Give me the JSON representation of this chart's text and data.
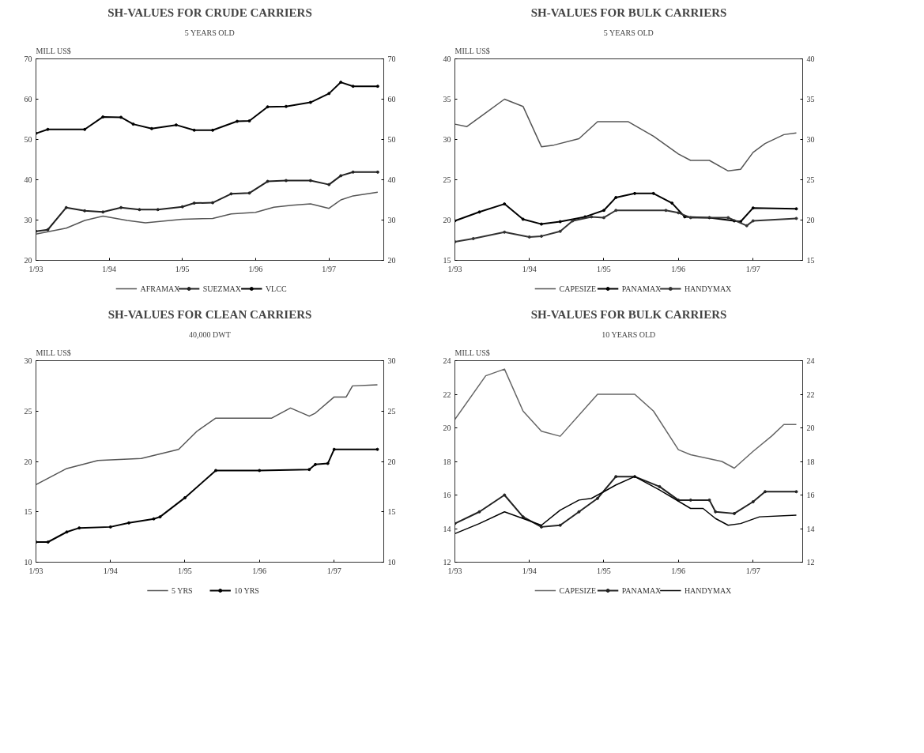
{
  "chart_data": [
    {
      "type": "line",
      "title": "SH-VALUES FOR CRUDE CARRIERS",
      "subtitle": "5 YEARS OLD",
      "ylabel": "MILL US$",
      "legend": "bottom",
      "xlim": [
        "1993-01",
        "1997-10"
      ],
      "xticks": [
        {
          "value": "1993-01",
          "label": "1/93"
        },
        {
          "value": "1994-01",
          "label": "1/94"
        },
        {
          "value": "1995-01",
          "label": "1/95"
        },
        {
          "value": "1996-01",
          "label": "1/96"
        },
        {
          "value": "1997-01",
          "label": "1/97"
        }
      ],
      "ylim": [
        20,
        70
      ],
      "yticks": [
        20,
        30,
        40,
        50,
        60,
        70
      ],
      "y2lim": [
        20,
        70
      ],
      "y2ticks": [
        20,
        30,
        40,
        50,
        60,
        70
      ],
      "series": [
        {
          "name": "AFRAMAX",
          "color": "#555555",
          "marker": "none",
          "x": [
            "1993-01",
            "1993-06",
            "1993-09",
            "1993-12",
            "1994-04",
            "1994-07",
            "1995-01",
            "1995-06",
            "1995-09",
            "1996-01",
            "1996-04",
            "1996-07",
            "1996-10",
            "1997-01",
            "1997-03",
            "1997-05",
            "1997-09"
          ],
          "values": [
            26.5,
            28.0,
            29.9,
            31.0,
            29.9,
            29.3,
            30.2,
            30.4,
            31.5,
            31.9,
            33.2,
            33.7,
            34.0,
            32.9,
            35.0,
            36.0,
            36.9
          ]
        },
        {
          "name": "SUEZMAX",
          "color": "#222222",
          "marker": "circle",
          "x": [
            "1993-01",
            "1993-03",
            "1993-06",
            "1993-09",
            "1993-12",
            "1994-03",
            "1994-06",
            "1994-09",
            "1995-01",
            "1995-03",
            "1995-06",
            "1995-09",
            "1995-12",
            "1996-03",
            "1996-06",
            "1996-10",
            "1997-01",
            "1997-03",
            "1997-05",
            "1997-09"
          ],
          "values": [
            27.2,
            27.6,
            33.1,
            32.3,
            32.0,
            33.1,
            32.6,
            32.6,
            33.3,
            34.2,
            34.3,
            36.5,
            36.7,
            39.6,
            39.8,
            39.8,
            38.8,
            41.0,
            41.9,
            41.9
          ]
        },
        {
          "name": "VLCC",
          "color": "#000000",
          "marker": "circle",
          "x": [
            "1993-01",
            "1993-03",
            "1993-09",
            "1993-12",
            "1994-03",
            "1994-05",
            "1994-08",
            "1994-12",
            "1995-03",
            "1995-06",
            "1995-10",
            "1995-12",
            "1996-03",
            "1996-06",
            "1996-10",
            "1997-01",
            "1997-03",
            "1997-05",
            "1997-09"
          ],
          "values": [
            51.5,
            52.5,
            52.5,
            55.6,
            55.5,
            53.8,
            52.7,
            53.6,
            52.3,
            52.3,
            54.5,
            54.6,
            58.1,
            58.2,
            59.2,
            61.4,
            64.2,
            63.2,
            63.2
          ]
        }
      ]
    },
    {
      "type": "line",
      "title": "SH-VALUES FOR BULK CARRIERS",
      "subtitle": "5 YEARS OLD",
      "ylabel": "MILL US$",
      "legend": "bottom",
      "xlim": [
        "1993-01",
        "1997-09"
      ],
      "xticks": [
        {
          "value": "1993-01",
          "label": "1/93"
        },
        {
          "value": "1994-01",
          "label": "1/94"
        },
        {
          "value": "1995-01",
          "label": "1/95"
        },
        {
          "value": "1996-01",
          "label": "1/96"
        },
        {
          "value": "1997-01",
          "label": "1/97"
        }
      ],
      "ylim": [
        15,
        40
      ],
      "yticks": [
        15,
        20,
        25,
        30,
        35,
        40
      ],
      "y2lim": [
        15,
        40
      ],
      "y2ticks": [
        15,
        20,
        25,
        30,
        35,
        40
      ],
      "series": [
        {
          "name": "CAPESIZE",
          "color": "#555555",
          "marker": "none",
          "x": [
            "1993-01",
            "1993-03",
            "1993-06",
            "1993-09",
            "1993-12",
            "1994-03",
            "1994-05",
            "1994-09",
            "1994-12",
            "1995-05",
            "1995-09",
            "1996-01",
            "1996-03",
            "1996-06",
            "1996-09",
            "1996-11",
            "1997-01",
            "1997-03",
            "1997-06",
            "1997-08"
          ],
          "values": [
            31.9,
            31.6,
            33.3,
            35.0,
            34.1,
            29.1,
            29.3,
            30.1,
            32.2,
            32.2,
            30.4,
            28.2,
            27.4,
            27.4,
            26.1,
            26.3,
            28.4,
            29.5,
            30.6,
            30.8
          ]
        },
        {
          "name": "PANAMAX",
          "color": "#000000",
          "marker": "circle",
          "x": [
            "1993-01",
            "1993-05",
            "1993-09",
            "1993-12",
            "1994-03",
            "1994-06",
            "1994-10",
            "1995-01",
            "1995-03",
            "1995-06",
            "1995-09",
            "1995-12",
            "1996-02",
            "1996-06",
            "1996-10",
            "1996-11",
            "1997-01",
            "1997-08"
          ],
          "values": [
            19.9,
            21.0,
            22.0,
            20.1,
            19.5,
            19.8,
            20.4,
            21.2,
            22.8,
            23.3,
            23.3,
            22.1,
            20.4,
            20.3,
            19.9,
            19.8,
            21.5,
            21.4
          ]
        },
        {
          "name": "HANDYMAX",
          "color": "#333333",
          "marker": "circle",
          "x": [
            "1993-01",
            "1993-04",
            "1993-09",
            "1994-01",
            "1994-03",
            "1994-06",
            "1994-08",
            "1994-11",
            "1995-01",
            "1995-03",
            "1995-11",
            "1996-01",
            "1996-03",
            "1996-09",
            "1996-12",
            "1997-01",
            "1997-08"
          ],
          "values": [
            17.3,
            17.7,
            18.5,
            17.9,
            18.0,
            18.6,
            19.9,
            20.4,
            20.3,
            21.2,
            21.2,
            20.9,
            20.3,
            20.3,
            19.3,
            19.9,
            20.2
          ]
        }
      ]
    },
    {
      "type": "line",
      "title": "SH-VALUES FOR CLEAN CARRIERS",
      "subtitle": "40,000 DWT",
      "ylabel": "MILL US$",
      "legend": "bottom",
      "xlim": [
        "1993-01",
        "1997-09"
      ],
      "xticks": [
        {
          "value": "1993-01",
          "label": "1/93"
        },
        {
          "value": "1994-01",
          "label": "1/94"
        },
        {
          "value": "1995-01",
          "label": "1/95"
        },
        {
          "value": "1996-01",
          "label": "1/96"
        },
        {
          "value": "1997-01",
          "label": "1/97"
        }
      ],
      "ylim": [
        10,
        30
      ],
      "yticks": [
        10,
        15,
        20,
        25,
        30
      ],
      "y2lim": [
        10,
        30
      ],
      "y2ticks": [
        10,
        15,
        20,
        25,
        30
      ],
      "series": [
        {
          "name": "5 YRS",
          "color": "#555555",
          "marker": "none",
          "x": [
            "1993-01",
            "1993-06",
            "1993-11",
            "1994-06",
            "1994-12",
            "1995-03",
            "1995-06",
            "1996-03",
            "1996-06",
            "1996-09",
            "1996-10",
            "1997-01",
            "1997-03",
            "1997-04",
            "1997-08"
          ],
          "values": [
            17.7,
            19.3,
            20.1,
            20.3,
            21.2,
            23.0,
            24.3,
            24.3,
            25.3,
            24.5,
            24.8,
            26.4,
            26.4,
            27.5,
            27.6
          ]
        },
        {
          "name": "10 YRS",
          "color": "#000000",
          "marker": "circle",
          "x": [
            "1993-01",
            "1993-03",
            "1993-06",
            "1993-08",
            "1994-01",
            "1994-04",
            "1994-08",
            "1994-09",
            "1995-01",
            "1995-06",
            "1996-01",
            "1996-09",
            "1996-10",
            "1996-12",
            "1997-01",
            "1997-08"
          ],
          "values": [
            12.0,
            12.0,
            13.0,
            13.4,
            13.5,
            13.9,
            14.3,
            14.5,
            16.4,
            19.1,
            19.1,
            19.2,
            19.7,
            19.8,
            21.2,
            21.2
          ]
        }
      ]
    },
    {
      "type": "line",
      "title": "SH-VALUES FOR BULK CARRIERS",
      "subtitle": "10 YEARS OLD",
      "ylabel": "MILL US$",
      "legend": "bottom",
      "xlim": [
        "1993-01",
        "1997-09"
      ],
      "xticks": [
        {
          "value": "1993-01",
          "label": "1/93"
        },
        {
          "value": "1994-01",
          "label": "1/94"
        },
        {
          "value": "1995-01",
          "label": "1/95"
        },
        {
          "value": "1996-01",
          "label": "1/96"
        },
        {
          "value": "1997-01",
          "label": "1/97"
        }
      ],
      "ylim": [
        12,
        24
      ],
      "yticks": [
        12,
        14,
        16,
        18,
        20,
        22,
        24
      ],
      "y2lim": [
        12,
        24
      ],
      "y2ticks": [
        12,
        14,
        16,
        18,
        20,
        22,
        24
      ],
      "series": [
        {
          "name": "CAPESIZE",
          "color": "#666666",
          "marker": "none",
          "x": [
            "1993-01",
            "1993-06",
            "1993-09",
            "1993-12",
            "1994-03",
            "1994-06",
            "1994-12",
            "1995-06",
            "1995-09",
            "1996-01",
            "1996-03",
            "1996-08",
            "1996-10",
            "1997-01",
            "1997-04",
            "1997-06",
            "1997-08"
          ],
          "values": [
            20.5,
            23.1,
            23.5,
            21.0,
            19.8,
            19.5,
            22.0,
            22.0,
            21.0,
            18.7,
            18.4,
            18.0,
            17.6,
            18.6,
            19.5,
            20.2,
            20.2
          ]
        },
        {
          "name": "PANAMAX",
          "color": "#222222",
          "marker": "circle",
          "x": [
            "1993-01",
            "1993-05",
            "1993-09",
            "1993-12",
            "1994-03",
            "1994-06",
            "1994-09",
            "1994-12",
            "1995-03",
            "1995-06",
            "1995-10",
            "1996-01",
            "1996-03",
            "1996-06",
            "1996-07",
            "1996-10",
            "1997-01",
            "1997-03",
            "1997-08"
          ],
          "values": [
            14.3,
            15.0,
            16.0,
            14.7,
            14.1,
            14.2,
            15.0,
            15.8,
            17.1,
            17.1,
            16.5,
            15.7,
            15.7,
            15.7,
            15.0,
            14.9,
            15.6,
            16.2,
            16.2
          ]
        },
        {
          "name": "HANDYMAX",
          "color": "#000000",
          "marker": "none",
          "x": [
            "1993-01",
            "1993-05",
            "1993-09",
            "1993-12",
            "1994-03",
            "1994-06",
            "1994-09",
            "1994-11",
            "1995-01",
            "1995-03",
            "1995-06",
            "1995-10",
            "1996-03",
            "1996-05",
            "1996-07",
            "1996-09",
            "1996-11",
            "1997-02",
            "1997-08"
          ],
          "values": [
            13.7,
            14.3,
            15.0,
            14.6,
            14.2,
            15.1,
            15.7,
            15.8,
            16.2,
            16.6,
            17.1,
            16.3,
            15.2,
            15.2,
            14.6,
            14.2,
            14.3,
            14.7,
            14.8
          ]
        }
      ]
    }
  ]
}
